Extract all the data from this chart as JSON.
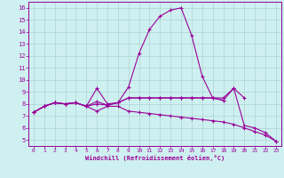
{
  "x": [
    0,
    1,
    2,
    3,
    4,
    5,
    6,
    7,
    8,
    9,
    10,
    11,
    12,
    13,
    14,
    15,
    16,
    17,
    18,
    19,
    20,
    21,
    22,
    23
  ],
  "line_peak": [
    7.3,
    7.8,
    8.1,
    8.0,
    8.1,
    7.8,
    8.0,
    7.9,
    8.1,
    9.4,
    12.2,
    14.2,
    15.3,
    15.8,
    16.0,
    13.7,
    10.3,
    8.5,
    8.3,
    9.3,
    6.2,
    6.0,
    5.6,
    4.9
  ],
  "line_flat": [
    7.3,
    7.8,
    8.1,
    8.0,
    8.1,
    7.8,
    8.2,
    7.9,
    8.1,
    8.5,
    8.5,
    8.5,
    8.5,
    8.5,
    8.5,
    8.5,
    8.5,
    8.5,
    8.3,
    null,
    null,
    null,
    null,
    null
  ],
  "line_upper": [
    7.3,
    7.8,
    8.1,
    8.0,
    8.1,
    7.8,
    9.3,
    8.0,
    8.1,
    8.5,
    8.5,
    8.5,
    8.5,
    8.5,
    8.5,
    8.5,
    8.5,
    8.5,
    8.5,
    9.3,
    8.5,
    null,
    null,
    null
  ],
  "line_lower": [
    7.3,
    7.8,
    8.1,
    8.0,
    8.1,
    7.8,
    7.4,
    7.8,
    7.8,
    7.4,
    7.3,
    7.2,
    7.1,
    7.0,
    6.9,
    6.8,
    6.7,
    6.6,
    6.5,
    6.3,
    6.0,
    5.7,
    5.4,
    4.9
  ],
  "bg_color": "#cff0f0",
  "grid_color": "#aad4d4",
  "line_color": "#990099",
  "xlabel": "Windchill (Refroidissement éolien,°C)",
  "ylim": [
    4.5,
    16.5
  ],
  "xlim": [
    -0.5,
    23.5
  ],
  "yticks": [
    5,
    6,
    7,
    8,
    9,
    10,
    11,
    12,
    13,
    14,
    15,
    16
  ],
  "xticks": [
    0,
    1,
    2,
    3,
    4,
    5,
    6,
    7,
    8,
    9,
    10,
    11,
    12,
    13,
    14,
    15,
    16,
    17,
    18,
    19,
    20,
    21,
    22,
    23
  ]
}
